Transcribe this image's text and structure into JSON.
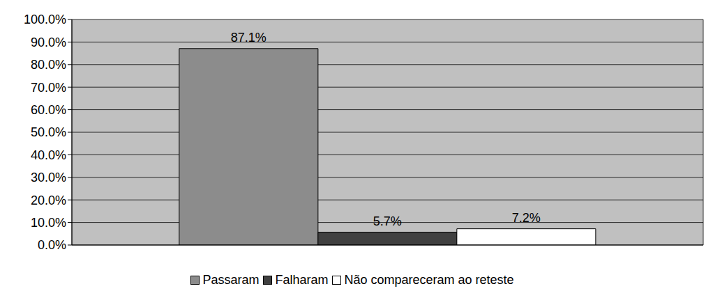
{
  "chart_data": {
    "type": "bar",
    "categories": [
      null
    ],
    "series": [
      {
        "name": "Passaram",
        "color": "#8c8c8c",
        "values": [
          87.1
        ],
        "value_labels": [
          "87.1%"
        ]
      },
      {
        "name": "Falharam",
        "color": "#404040",
        "values": [
          5.7
        ],
        "value_labels": [
          "5.7%"
        ]
      },
      {
        "name": "Não compareceram ao reteste",
        "color": "#ffffff",
        "values": [
          7.2
        ],
        "value_labels": [
          "7.2%"
        ]
      }
    ],
    "ylim": [
      0,
      100
    ],
    "yticks": [
      {
        "value": 0,
        "label": "0.0%"
      },
      {
        "value": 10,
        "label": "10.0%"
      },
      {
        "value": 20,
        "label": "20.0%"
      },
      {
        "value": 30,
        "label": "30.0%"
      },
      {
        "value": 40,
        "label": "40.0%"
      },
      {
        "value": 50,
        "label": "50.0%"
      },
      {
        "value": 60,
        "label": "60.0%"
      },
      {
        "value": 70,
        "label": "70.0%"
      },
      {
        "value": 80,
        "label": "80.0%"
      },
      {
        "value": 90,
        "label": "90.0%"
      },
      {
        "value": 100,
        "label": "100.0%"
      }
    ],
    "grid": true,
    "legend": "bottom",
    "data_labels": true,
    "tick_labels": "y"
  }
}
